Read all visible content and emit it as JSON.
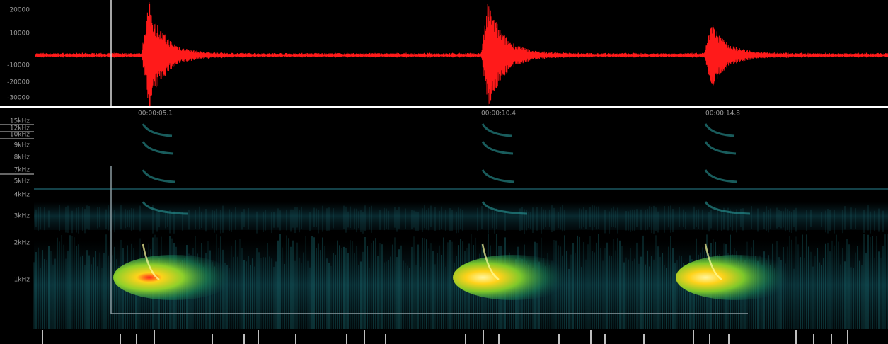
{
  "waveform": {
    "y_labels": [
      "20000",
      "10000",
      "-10000",
      "-20000",
      "-30000"
    ]
  },
  "spectrogram": {
    "y_labels": [
      "15kHz",
      "12kHz",
      "10kHz",
      "9kHz",
      "8kHz",
      "7kHz",
      "5kHz",
      "4kHz",
      "3kHz",
      "2kHz",
      "1kHz"
    ]
  },
  "markers": [
    "00:00:05.1",
    "00:00:10.4",
    "00:00:14.8"
  ]
}
